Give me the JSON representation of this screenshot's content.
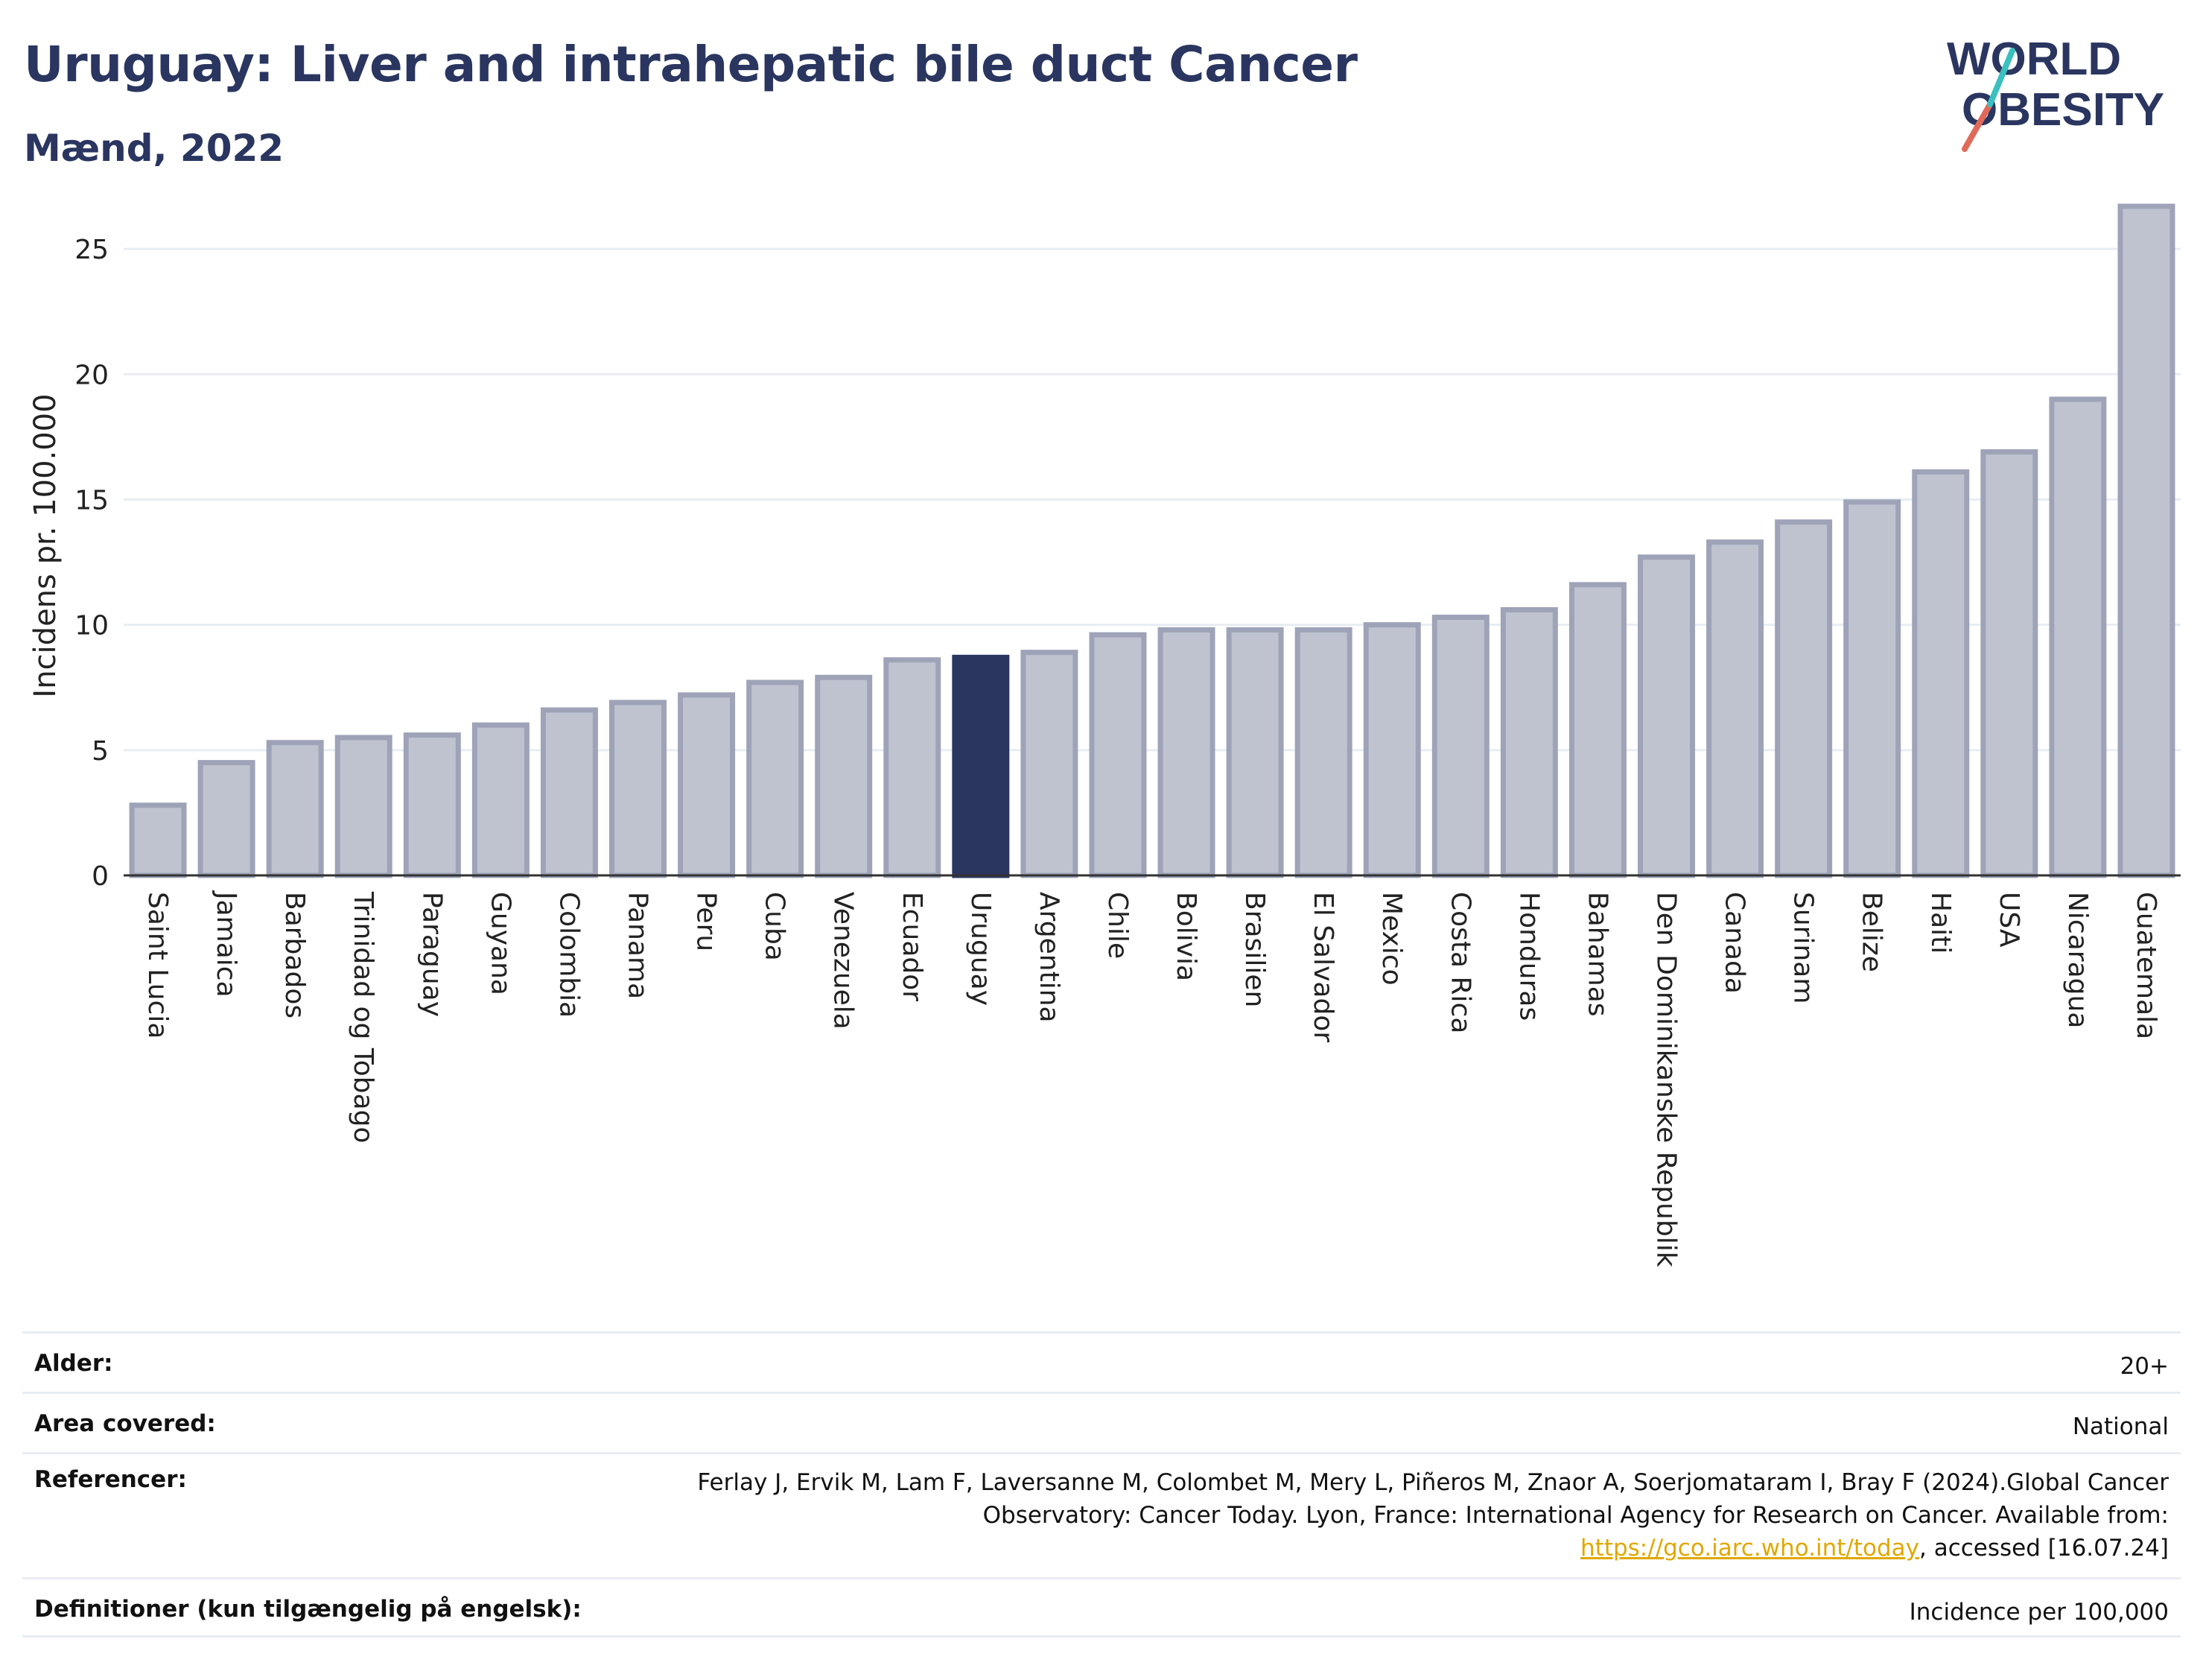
{
  "header": {
    "title": "Uruguay: Liver and intrahepatic bile duct Cancer",
    "subtitle": "Mænd, 2022"
  },
  "logo": {
    "line1": "WORLD",
    "line2": "OBESITY"
  },
  "colors": {
    "bar": "#bfc3d0",
    "bar_stroke": "#9ea3b8",
    "highlight": "#2a3660",
    "title": "#2a3660",
    "grid": "#e8edf3",
    "link": "#e0a800"
  },
  "chart_data": {
    "type": "bar",
    "title": "Uruguay: Liver and intrahepatic bile duct Cancer",
    "subtitle": "Mænd, 2022",
    "xlabel": "",
    "ylabel": "Incidens pr. 100.000",
    "ylim": [
      0,
      27.5
    ],
    "yticks": [
      0,
      5,
      10,
      15,
      20,
      25
    ],
    "grid": true,
    "highlight": "Uruguay",
    "categories": [
      "Saint Lucia",
      "Jamaica",
      "Barbados",
      "Trinidad og Tobago",
      "Paraguay",
      "Guyana",
      "Colombia",
      "Panama",
      "Peru",
      "Cuba",
      "Venezuela",
      "Ecuador",
      "Uruguay",
      "Argentina",
      "Chile",
      "Bolivia",
      "Brasilien",
      "El Salvador",
      "Mexico",
      "Costa Rica",
      "Honduras",
      "Bahamas",
      "Den Dominikanske Republik",
      "Canada",
      "Surinam",
      "Belize",
      "Haiti",
      "USA",
      "Nicaragua",
      "Guatemala"
    ],
    "values": [
      2.8,
      4.5,
      5.3,
      5.5,
      5.6,
      6.0,
      6.6,
      6.9,
      7.2,
      7.7,
      7.9,
      8.6,
      8.7,
      8.9,
      9.6,
      9.8,
      9.8,
      9.8,
      10.0,
      10.3,
      10.6,
      11.6,
      12.7,
      13.3,
      14.1,
      14.9,
      16.1,
      16.9,
      19.0,
      26.7
    ]
  },
  "meta": {
    "age_label": "Alder:",
    "age_value": "20+",
    "area_label": "Area covered:",
    "area_value": "National",
    "ref_label": "Referencer:",
    "ref_text_1": "Ferlay J, Ervik M, Lam F, Laversanne M, Colombet M, Mery L, Piñeros M, Znaor A, Soerjomataram I, Bray F (2024).Global Cancer Observatory: Cancer Today. Lyon, France: International Agency for Research on Cancer. Available from: ",
    "ref_link": "https://gco.iarc.who.int/today",
    "ref_text_2": ", accessed [16.07.24]",
    "def_label": "Definitioner (kun tilgængelig på engelsk):",
    "def_value": "Incidence per 100,000"
  }
}
